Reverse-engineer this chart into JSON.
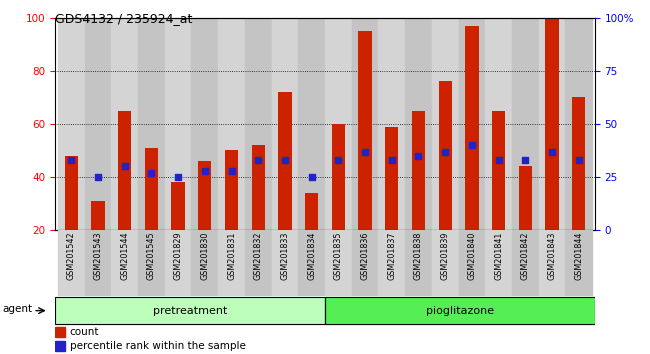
{
  "title": "GDS4132 / 235924_at",
  "samples": [
    "GSM201542",
    "GSM201543",
    "GSM201544",
    "GSM201545",
    "GSM201829",
    "GSM201830",
    "GSM201831",
    "GSM201832",
    "GSM201833",
    "GSM201834",
    "GSM201835",
    "GSM201836",
    "GSM201837",
    "GSM201838",
    "GSM201839",
    "GSM201840",
    "GSM201841",
    "GSM201842",
    "GSM201843",
    "GSM201844"
  ],
  "counts": [
    48,
    31,
    65,
    51,
    38,
    46,
    50,
    52,
    72,
    34,
    60,
    95,
    59,
    65,
    76,
    97,
    65,
    44,
    100,
    70
  ],
  "percentile": [
    33,
    25,
    30,
    27,
    25,
    28,
    28,
    33,
    33,
    25,
    33,
    37,
    33,
    35,
    37,
    40,
    33,
    33,
    37,
    33
  ],
  "pretreatment_count": 10,
  "pioglitazone_count": 10,
  "group_labels": [
    "pretreatment",
    "pioglitazone"
  ],
  "left_ylim": [
    20,
    100
  ],
  "right_ylim": [
    0,
    100
  ],
  "right_yticks": [
    0,
    25,
    50,
    75,
    100
  ],
  "right_yticklabels": [
    "0",
    "25",
    "50",
    "75",
    "100%"
  ],
  "left_yticks": [
    20,
    40,
    60,
    80,
    100
  ],
  "bar_color": "#cc2200",
  "dot_color": "#2222cc",
  "col_bg_even": "#d4d4d4",
  "col_bg_odd": "#c4c4c4",
  "plot_bg_color": "#ffffff",
  "pretreat_bg": "#bbffbb",
  "pioglitazone_bg": "#55ee55",
  "bar_width": 0.5,
  "legend_count_label": "count",
  "legend_pct_label": "percentile rank within the sample",
  "xlabel_agent": "agent",
  "label_fontsize": 5.8,
  "title_fontsize": 9,
  "axis_fontsize": 7.5
}
